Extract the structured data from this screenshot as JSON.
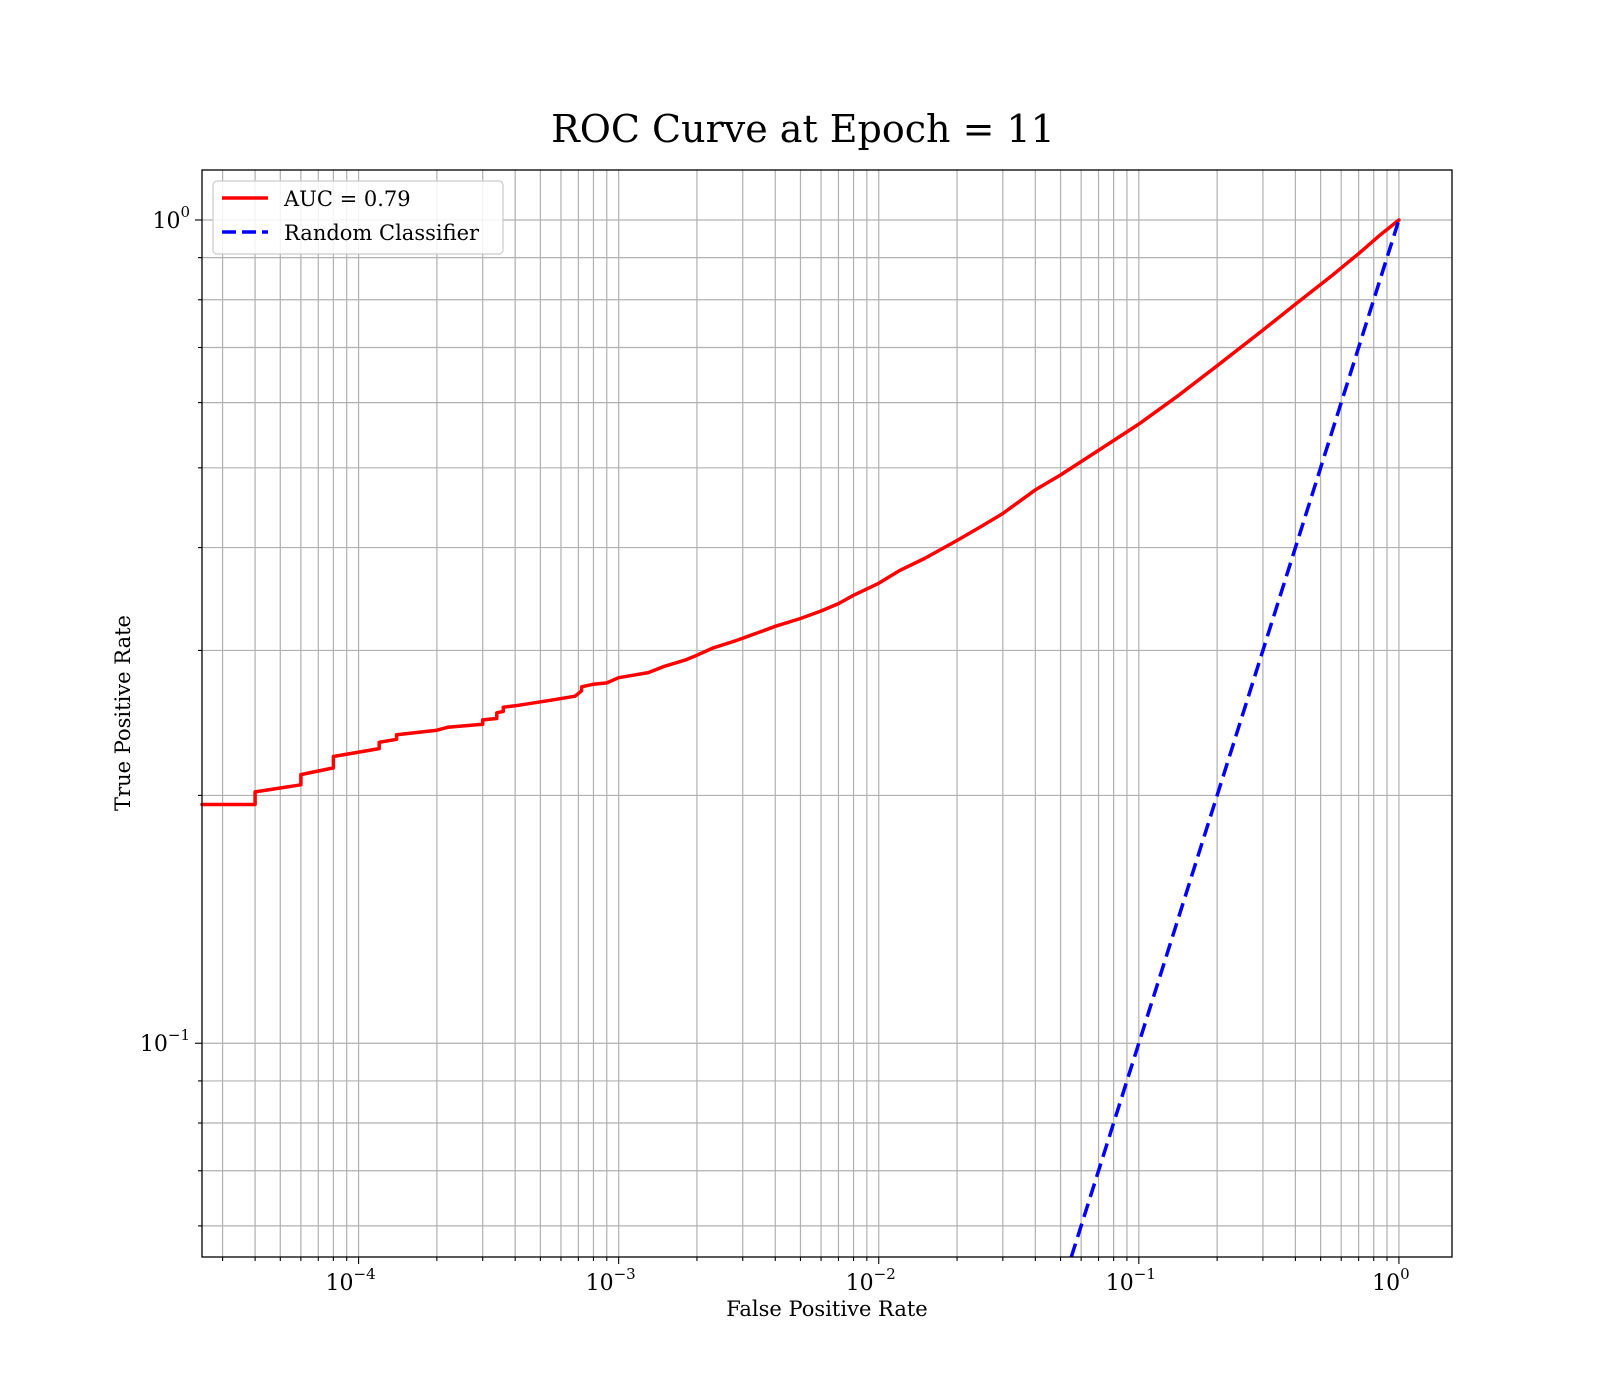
{
  "chart_data": {
    "type": "line",
    "title": "ROC Curve at Epoch = 11",
    "xlabel": "False Positive Rate",
    "ylabel": "True Positive Rate",
    "xscale": "log",
    "yscale": "log",
    "xlim": [
      2.5e-05,
      1.6
    ],
    "ylim": [
      0.055,
      1.15
    ],
    "grid": "both-major-minor",
    "legend_position": "top-left",
    "xticks": [
      {
        "base": "10",
        "exp": "−4",
        "value": 0.0001
      },
      {
        "base": "10",
        "exp": "−3",
        "value": 0.001
      },
      {
        "base": "10",
        "exp": "−2",
        "value": 0.01
      },
      {
        "base": "10",
        "exp": "−1",
        "value": 0.1
      },
      {
        "base": "10",
        "exp": "0",
        "value": 1
      }
    ],
    "yticks": [
      {
        "base": "10",
        "exp": "−1",
        "value": 0.1
      },
      {
        "base": "10",
        "exp": "0",
        "value": 1
      }
    ],
    "series": [
      {
        "name": "AUC = 0.79",
        "color": "#ff0000",
        "style": "solid",
        "x": [
          2.5e-05,
          4e-05,
          4e-05,
          6e-05,
          6e-05,
          8e-05,
          8e-05,
          0.00012,
          0.00012,
          0.00014,
          0.00014,
          0.0002,
          0.00022,
          0.0003,
          0.0003,
          0.00034,
          0.00034,
          0.00036,
          0.00036,
          0.0004,
          0.00055,
          0.00068,
          0.00072,
          0.00072,
          0.0008,
          0.0009,
          0.001,
          0.0013,
          0.0015,
          0.0018,
          0.002,
          0.0023,
          0.0028,
          0.0035,
          0.004,
          0.005,
          0.006,
          0.007,
          0.008,
          0.01,
          0.012,
          0.015,
          0.02,
          0.025,
          0.03,
          0.04,
          0.05,
          0.07,
          0.1,
          0.14,
          0.2,
          0.3,
          0.4,
          0.55,
          0.7,
          0.85,
          1.0
        ],
        "y": [
          0.195,
          0.195,
          0.202,
          0.206,
          0.212,
          0.216,
          0.223,
          0.228,
          0.232,
          0.234,
          0.237,
          0.24,
          0.242,
          0.244,
          0.247,
          0.248,
          0.252,
          0.253,
          0.256,
          0.257,
          0.261,
          0.264,
          0.268,
          0.271,
          0.273,
          0.274,
          0.278,
          0.282,
          0.287,
          0.292,
          0.296,
          0.302,
          0.308,
          0.316,
          0.321,
          0.328,
          0.335,
          0.342,
          0.35,
          0.362,
          0.375,
          0.388,
          0.408,
          0.425,
          0.44,
          0.47,
          0.49,
          0.525,
          0.565,
          0.61,
          0.665,
          0.735,
          0.79,
          0.855,
          0.91,
          0.96,
          1.0
        ]
      },
      {
        "name": "Random Classifier",
        "color": "#0000ff",
        "style": "dashed",
        "x": [
          0.055,
          1.0
        ],
        "y": [
          0.055,
          1.0
        ]
      }
    ]
  }
}
